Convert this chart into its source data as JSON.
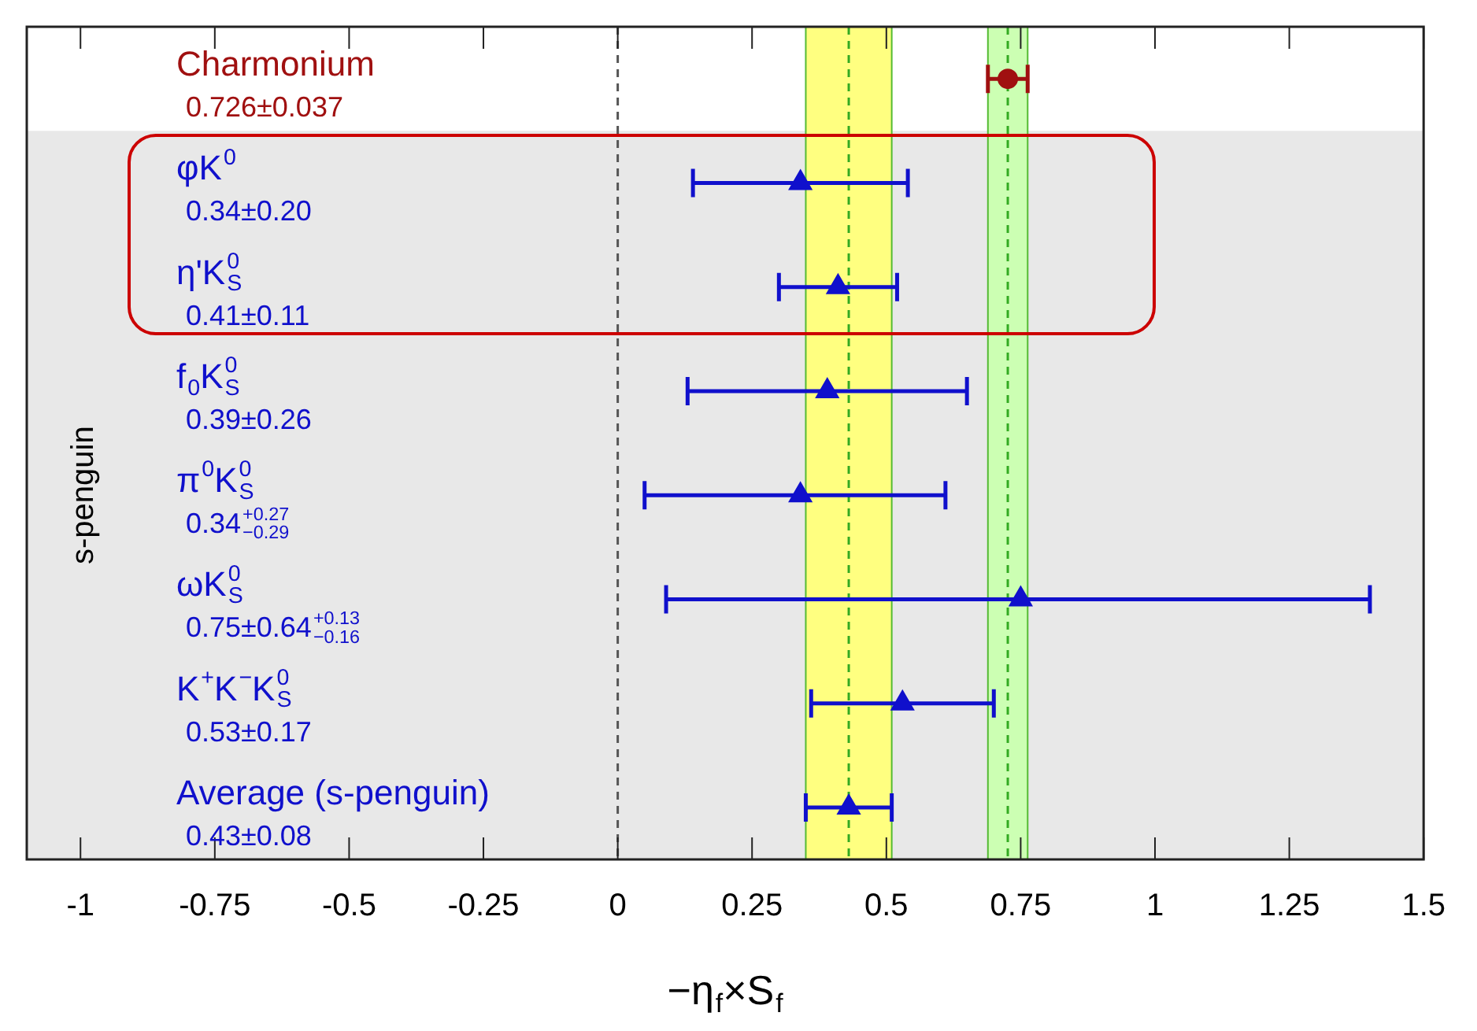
{
  "chart_data": {
    "type": "scatter",
    "orientation": "horizontal",
    "xlabel": "−η$_{f}$×S$_{f}$",
    "ylabel": "s-penguin",
    "categories": [
      "Charmonium",
      "φK$^{0}$",
      "η'K$^{0}$$_{S}$",
      "f$_{0}$K$^{0}$$_{S}$",
      "π$^{0}$K$^{0}$$_{S}$",
      "ωK$^{0}$$_{S}$",
      "K$^{+}$K$^{−}$K$^{0}$$_{S}$",
      "Average (s-penguin)"
    ],
    "series": [
      {
        "color": "#a01010",
        "marker": "circle",
        "values": [
          0.726,
          null,
          null,
          null,
          null,
          null,
          null,
          null
        ],
        "errors": [
          0.037,
          null,
          null,
          null,
          null,
          null,
          null,
          null
        ]
      },
      {
        "color": "#1010cc",
        "marker": "triangle",
        "values": [
          null,
          0.34,
          0.41,
          0.39,
          0.34,
          0.75,
          0.53,
          0.43
        ],
        "errors": [
          null,
          0.2,
          0.11,
          0.26,
          [
            0.05,
            0.61
          ],
          [
            0.09,
            1.4
          ],
          0.17,
          0.08
        ]
      }
    ],
    "annotations": [
      "0.726±0.037",
      "0.34±0.20",
      "0.41±0.11",
      "0.39±0.26",
      "0.34$^{+0.27}$$_{−0.29}$",
      "0.75±0.64$^{+0.13}$$_{−0.16}$",
      "0.53±0.17",
      "0.43±0.08"
    ],
    "xlim": [
      -1.1,
      1.5
    ],
    "xticks": [
      -1,
      -0.75,
      -0.5,
      -0.25,
      0,
      0.25,
      0.5,
      0.75,
      1,
      1.25,
      1.5
    ],
    "bands": [
      {
        "axis": "y",
        "from": "φK$^{0}$",
        "to": "Average (s-penguin)",
        "color": "#e8e8e8"
      },
      {
        "axis": "x",
        "from": 0.35,
        "to": 0.51,
        "color": "#ffff80"
      },
      {
        "axis": "x",
        "from": 0.689,
        "to": 0.763,
        "color": "#ccffb3"
      }
    ],
    "ref_lines": [
      {
        "axis": "x",
        "value": 0,
        "color": "#555555",
        "line_style": "dashed"
      },
      {
        "axis": "x",
        "value": 0.43,
        "color": "#33aa22",
        "line_style": "dashed"
      },
      {
        "axis": "x",
        "value": 0.726,
        "color": "#33aa22",
        "line_style": "dashed"
      }
    ]
  }
}
